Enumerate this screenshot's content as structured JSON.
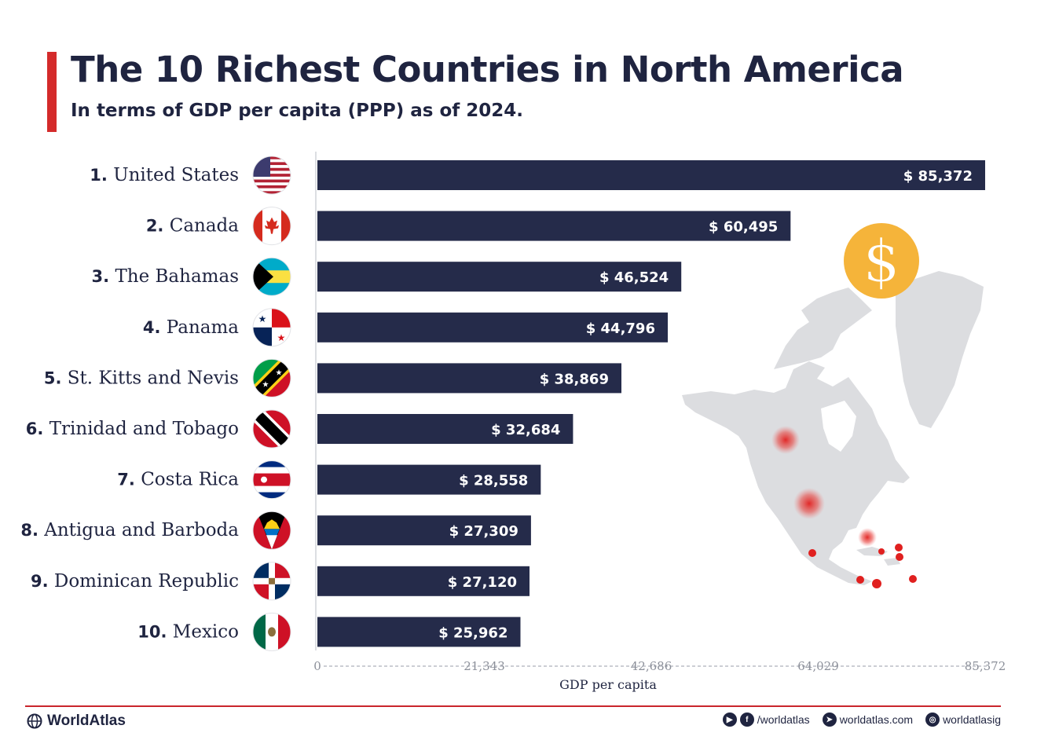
{
  "header": {
    "title": "The 10 Richest Countries in North America",
    "subtitle": "In terms of GDP per capita (PPP) as of 2024."
  },
  "colors": {
    "bar": "#252b4a",
    "accent": "#d42b2b",
    "text": "#1f2440",
    "map": "#dcdde0",
    "coin": "#f5b43a"
  },
  "chart_data": {
    "type": "bar",
    "orientation": "horizontal",
    "title": "The 10 Richest Countries in North America",
    "subtitle": "In terms of GDP per capita (PPP) as of 2024.",
    "xlabel": "GDP per capita",
    "ylabel": "",
    "xlim": [
      0,
      85372
    ],
    "xticks": [
      0,
      21343,
      42686,
      64029,
      85372
    ],
    "xtick_labels": [
      "0",
      "21,343",
      "42,686",
      "64,029",
      "85,372"
    ],
    "grid": false,
    "legend": "none",
    "categories": [
      {
        "rank": "1.",
        "name": "United States",
        "flag": "flag-usa"
      },
      {
        "rank": "2.",
        "name": "Canada",
        "flag": "flag-canada"
      },
      {
        "rank": "3.",
        "name": "The Bahamas",
        "flag": "flag-bahamas"
      },
      {
        "rank": "4.",
        "name": "Panama",
        "flag": "flag-panama"
      },
      {
        "rank": "5.",
        "name": "St. Kitts and Nevis",
        "flag": "flag-st-kitts-and-nevis"
      },
      {
        "rank": "6.",
        "name": "Trinidad and Tobago",
        "flag": "flag-trinidad-and-tobago"
      },
      {
        "rank": "7.",
        "name": "Costa Rica",
        "flag": "flag-costa-rica"
      },
      {
        "rank": "8.",
        "name": "Antigua and Barboda",
        "flag": "flag-antigua-and-barbuda"
      },
      {
        "rank": "9.",
        "name": "Dominican Republic",
        "flag": "flag-dominican-republic"
      },
      {
        "rank": "10.",
        "name": "Mexico",
        "flag": "flag-mexico"
      }
    ],
    "values": [
      85372,
      60495,
      46524,
      44796,
      38869,
      32684,
      28558,
      27309,
      27120,
      25962
    ],
    "value_labels": [
      "$ 85,372",
      "$ 60,495",
      "$ 46,524",
      "$ 44,796",
      "$ 38,869",
      "$ 32,684",
      "$ 28,558",
      "$ 27,309",
      "$ 27,120",
      "$ 25,962"
    ]
  },
  "decorations": {
    "coin_icon": "dollar-coin-icon",
    "map_icon": "north-america-map-icon"
  },
  "footer": {
    "brand": "WorldAtlas",
    "social_handle": "/worldatlas",
    "website": "worldatlas.com",
    "instagram": "worldatlasig"
  }
}
